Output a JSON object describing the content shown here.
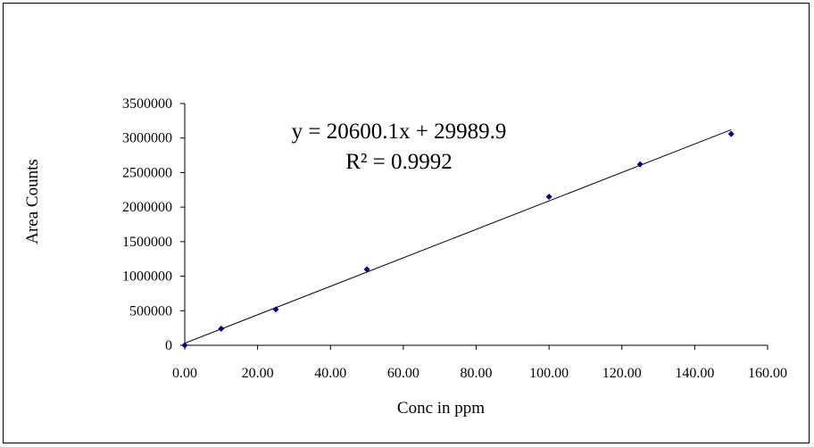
{
  "chart_data": {
    "type": "scatter",
    "title": "",
    "xlabel": "Conc in ppm",
    "ylabel": "Area Counts",
    "xlim": [
      0,
      160
    ],
    "ylim": [
      0,
      3500000
    ],
    "x_ticks": [
      "0.00",
      "20.00",
      "40.00",
      "60.00",
      "80.00",
      "100.00",
      "120.00",
      "140.00",
      "160.00"
    ],
    "y_ticks": [
      "0",
      "500000",
      "1000000",
      "1500000",
      "2000000",
      "2500000",
      "3000000",
      "3500000"
    ],
    "series": [
      {
        "points": [
          {
            "x": 0,
            "y": 0
          },
          {
            "x": 10,
            "y": 240000
          },
          {
            "x": 25,
            "y": 520000
          },
          {
            "x": 50,
            "y": 1100000
          },
          {
            "x": 100,
            "y": 2150000
          },
          {
            "x": 125,
            "y": 2620000
          },
          {
            "x": 150,
            "y": 3060000
          }
        ],
        "marker_color": "#00007f"
      }
    ],
    "trendline": {
      "slope": 20600.1,
      "intercept": 29989.9,
      "x_range": [
        0,
        150
      ],
      "color": "#000000"
    },
    "annotations": {
      "equation": "y = 20600.1x + 29989.9",
      "r_squared": "R² = 0.9992"
    },
    "grid": false,
    "legend": "none"
  }
}
